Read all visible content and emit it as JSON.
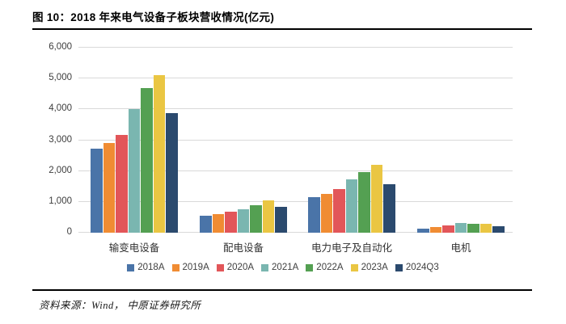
{
  "header": {
    "title": "图 10：2018 年来电气设备子板块营收情况(亿元)"
  },
  "footer": {
    "source": "资料来源：Wind， 中原证券研究所"
  },
  "chart_data": {
    "type": "bar",
    "title": "2018 年来电气设备子板块营收情况",
    "unit": "亿元",
    "categories": [
      "输变电设备",
      "配电设备",
      "电力电子及自动化",
      "电机"
    ],
    "series": [
      {
        "name": "2018A",
        "color": "#4a74a8",
        "values": [
          2720,
          560,
          1150,
          140
        ]
      },
      {
        "name": "2019A",
        "color": "#f08c33",
        "values": [
          2900,
          610,
          1270,
          190
        ]
      },
      {
        "name": "2020A",
        "color": "#e25659",
        "values": [
          3180,
          690,
          1420,
          230
        ]
      },
      {
        "name": "2021A",
        "color": "#7ab6b0",
        "values": [
          4000,
          770,
          1730,
          310
        ]
      },
      {
        "name": "2022A",
        "color": "#54a052",
        "values": [
          4700,
          890,
          1960,
          300
        ]
      },
      {
        "name": "2023A",
        "color": "#eac643",
        "values": [
          5120,
          1060,
          2190,
          300
        ]
      },
      {
        "name": "2024Q3",
        "color": "#2b4a6e",
        "values": [
          3890,
          840,
          1580,
          220
        ]
      }
    ],
    "ylim": [
      0,
      6000
    ],
    "ytick_interval": 1000,
    "ytick_labels": [
      "0",
      "1,000",
      "2,000",
      "3,000",
      "4,000",
      "5,000",
      "6,000"
    ],
    "grid": "horizontal",
    "gridline_color": "#d9d9d9",
    "legend_position": "bottom"
  }
}
